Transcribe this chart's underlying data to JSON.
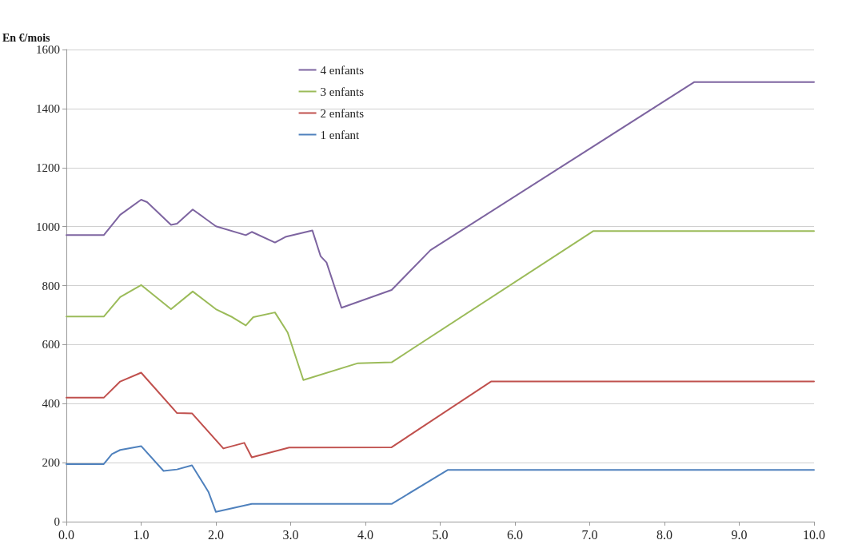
{
  "chart_data": {
    "type": "line",
    "ylabel": "En €/mois",
    "xlim": [
      0,
      10
    ],
    "ylim": [
      0,
      1600
    ],
    "xticks": [
      {
        "value": 0,
        "label": "0.0"
      },
      {
        "value": 1,
        "label": "1.0"
      },
      {
        "value": 2,
        "label": "2.0"
      },
      {
        "value": 3,
        "label": "3.0"
      },
      {
        "value": 4,
        "label": "4.0"
      },
      {
        "value": 5,
        "label": "5.0"
      },
      {
        "value": 6,
        "label": "6.0"
      },
      {
        "value": 7,
        "label": "7.0"
      },
      {
        "value": 8,
        "label": "8.0"
      },
      {
        "value": 9,
        "label": "9.0"
      },
      {
        "value": 10,
        "label": "10.0"
      }
    ],
    "yticks": [
      0,
      200,
      400,
      600,
      800,
      1000,
      1200,
      1400,
      1600
    ],
    "grid": "y",
    "legend": "top",
    "marker": "none",
    "line_style": "solid",
    "series": [
      {
        "name": "4 enfants",
        "color": "#7d64a0",
        "x": [
          0,
          0.5,
          0.72,
          1.0,
          1.08,
          1.4,
          1.48,
          1.69,
          2.0,
          2.4,
          2.48,
          2.79,
          2.93,
          3.29,
          3.4,
          3.48,
          3.68,
          4.35,
          4.87,
          8.4,
          10
        ],
        "values": [
          971,
          971,
          1040,
          1091,
          1083,
          1006,
          1010,
          1058,
          1001,
          971,
          982,
          946,
          965,
          987,
          900,
          878,
          725,
          785,
          920,
          1490,
          1490
        ]
      },
      {
        "name": "3 enfants",
        "color": "#9bbb59",
        "x": [
          0,
          0.5,
          0.72,
          1.0,
          1.4,
          1.69,
          2.0,
          2.22,
          2.4,
          2.5,
          2.79,
          2.96,
          3.17,
          3.9,
          4.35,
          7.05,
          10
        ],
        "values": [
          695,
          695,
          761,
          802,
          720,
          780,
          720,
          693,
          665,
          693,
          709,
          641,
          480,
          537,
          540,
          985,
          985
        ]
      },
      {
        "name": "2 enfants",
        "color": "#c0504d",
        "x": [
          0,
          0.5,
          0.72,
          1.0,
          1.48,
          1.68,
          2.1,
          2.38,
          2.48,
          2.98,
          4.35,
          5.68,
          10
        ],
        "values": [
          420,
          420,
          475,
          505,
          368,
          367,
          248,
          267,
          218,
          251,
          252,
          475,
          475
        ]
      },
      {
        "name": "1 enfant",
        "color": "#4f81bd",
        "x": [
          0,
          0.5,
          0.61,
          0.72,
          1.0,
          1.3,
          1.48,
          1.68,
          1.9,
          2.0,
          2.48,
          4.35,
          5.1,
          10
        ],
        "values": [
          195,
          195,
          229,
          243,
          256,
          172,
          177,
          191,
          101,
          33,
          60,
          60,
          175,
          175
        ]
      }
    ]
  }
}
